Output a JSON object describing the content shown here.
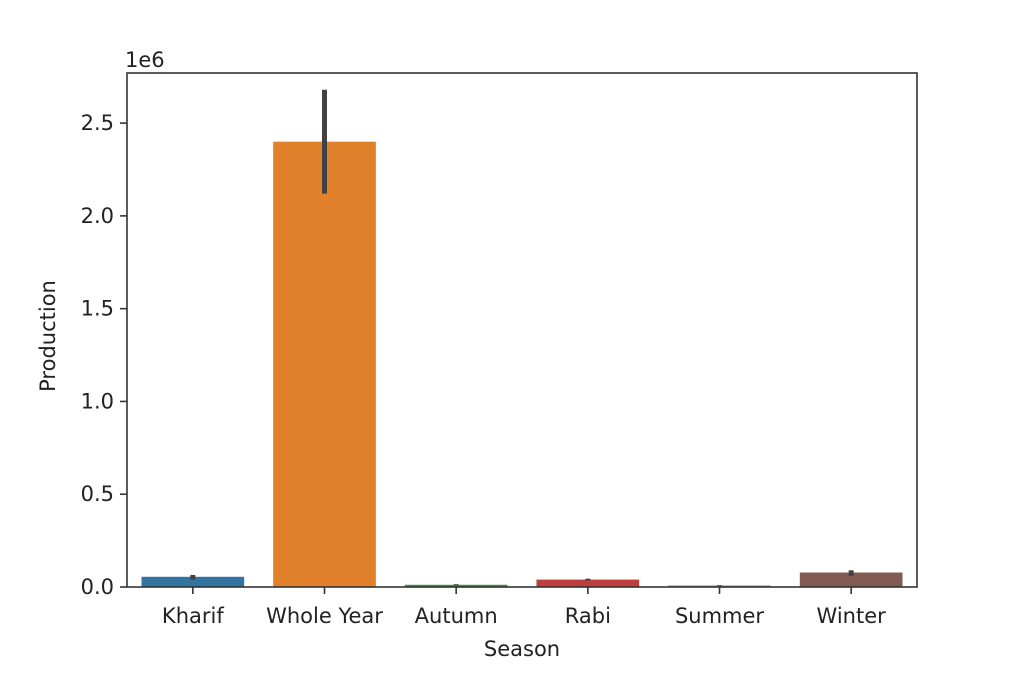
{
  "chart_data": {
    "type": "bar",
    "xlabel": "Season",
    "ylabel": "Production",
    "y_offset_label": "1e6",
    "y_scale": 1000000,
    "ylim": [
      0,
      2.77
    ],
    "yticks": [
      0.0,
      0.5,
      1.0,
      1.5,
      2.0,
      2.5
    ],
    "ytick_labels": [
      "0.0",
      "0.5",
      "1.0",
      "1.5",
      "2.0",
      "2.5"
    ],
    "categories": [
      "Kharif",
      "Whole Year",
      "Autumn",
      "Rabi",
      "Summer",
      "Winter"
    ],
    "values": [
      0.055,
      2.4,
      0.012,
      0.04,
      0.008,
      0.078
    ],
    "error_bars": [
      [
        0.04,
        0.065
      ],
      [
        2.12,
        2.68
      ],
      [
        0.009,
        0.015
      ],
      [
        0.035,
        0.045
      ],
      [
        0.006,
        0.01
      ],
      [
        0.06,
        0.09
      ]
    ],
    "colors": [
      "#3274a1",
      "#e1812c",
      "#3a923a",
      "#c03d3e",
      "#9372b2",
      "#845b53"
    ],
    "grid": false,
    "legend": "none"
  }
}
